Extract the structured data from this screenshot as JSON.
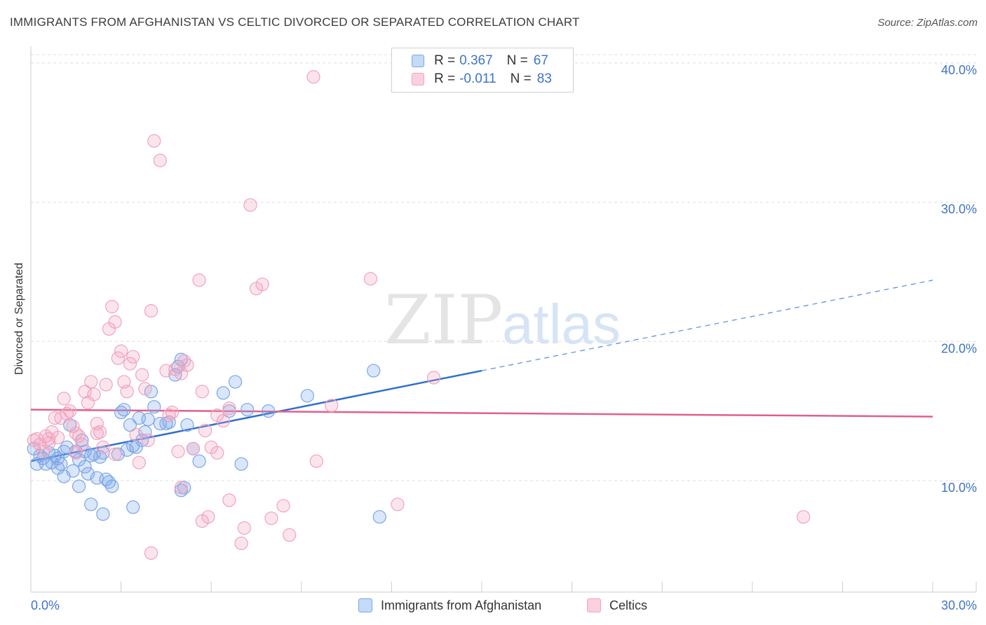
{
  "chart_data": {
    "type": "scatter",
    "title": "IMMIGRANTS FROM AFGHANISTAN VS CELTIC DIVORCED OR SEPARATED CORRELATION CHART",
    "source": "Source: ZipAtlas.com",
    "ylabel": "Divorced or Separated",
    "xlabel": "",
    "xlim": [
      0,
      30
    ],
    "ylim": [
      2,
      41
    ],
    "x_ticks": [
      "0.0%",
      "30.0%"
    ],
    "y_ticks": [
      {
        "value": 10,
        "label": "10.0%"
      },
      {
        "value": 20,
        "label": "20.0%"
      },
      {
        "value": 30,
        "label": "30.0%"
      },
      {
        "value": 40,
        "label": "40.0%"
      }
    ],
    "watermark": {
      "zip": "ZIP",
      "atlas": "atlas"
    },
    "legend": {
      "r_label": "R =",
      "n_label": "N =",
      "rows": [
        {
          "r": "0.367",
          "n": "67"
        },
        {
          "r": "-0.011",
          "n": "83"
        }
      ]
    },
    "series": [
      {
        "name": "Immigrants from Afghanistan",
        "color": "#7aa6e8",
        "line_color": "#2f6fce",
        "trend": {
          "x0": 0,
          "y0": 11.4,
          "x1": 15,
          "y1": 17.9,
          "dash_to_x": 30,
          "dash_to_y": 24.4
        },
        "points": [
          [
            0.1,
            12.3
          ],
          [
            0.2,
            11.2
          ],
          [
            0.3,
            11.8
          ],
          [
            0.4,
            11.6
          ],
          [
            0.5,
            11.2
          ],
          [
            0.6,
            12.0
          ],
          [
            0.7,
            11.3
          ],
          [
            0.8,
            11.8
          ],
          [
            0.9,
            11.6
          ],
          [
            1.0,
            11.2
          ],
          [
            1.1,
            12.1
          ],
          [
            1.2,
            12.4
          ],
          [
            1.3,
            14.0
          ],
          [
            1.4,
            10.7
          ],
          [
            1.5,
            12.1
          ],
          [
            1.6,
            11.5
          ],
          [
            1.7,
            12.9
          ],
          [
            1.8,
            11.0
          ],
          [
            1.9,
            10.5
          ],
          [
            2.0,
            11.8
          ],
          [
            2.1,
            11.9
          ],
          [
            2.2,
            10.2
          ],
          [
            2.3,
            11.7
          ],
          [
            2.4,
            12.0
          ],
          [
            2.5,
            10.1
          ],
          [
            2.6,
            9.9
          ],
          [
            2.7,
            9.6
          ],
          [
            2.0,
            8.3
          ],
          [
            2.4,
            7.6
          ],
          [
            2.9,
            11.9
          ],
          [
            3.0,
            14.9
          ],
          [
            3.1,
            15.1
          ],
          [
            3.2,
            12.2
          ],
          [
            3.3,
            14.0
          ],
          [
            3.4,
            12.5
          ],
          [
            3.5,
            12.4
          ],
          [
            3.6,
            14.5
          ],
          [
            3.7,
            12.9
          ],
          [
            3.8,
            13.5
          ],
          [
            3.9,
            14.4
          ],
          [
            4.0,
            16.4
          ],
          [
            4.1,
            15.3
          ],
          [
            3.4,
            8.1
          ],
          [
            4.3,
            14.1
          ],
          [
            4.5,
            14.1
          ],
          [
            4.6,
            14.2
          ],
          [
            4.8,
            17.6
          ],
          [
            4.9,
            18.2
          ],
          [
            5.0,
            18.7
          ],
          [
            5.2,
            14.0
          ],
          [
            5.4,
            12.3
          ],
          [
            5.6,
            11.4
          ],
          [
            5.1,
            9.5
          ],
          [
            6.4,
            16.3
          ],
          [
            6.6,
            15.0
          ],
          [
            6.8,
            17.1
          ],
          [
            5.0,
            9.3
          ],
          [
            7.0,
            11.2
          ],
          [
            7.2,
            15.1
          ],
          [
            7.9,
            15.0
          ],
          [
            9.2,
            16.1
          ],
          [
            11.4,
            17.9
          ],
          [
            11.6,
            7.4
          ],
          [
            1.6,
            9.6
          ],
          [
            1.1,
            10.3
          ],
          [
            0.9,
            10.9
          ],
          [
            1.8,
            12.1
          ]
        ]
      },
      {
        "name": "Celtics",
        "color": "#f2a2bd",
        "line_color": "#e0608a",
        "trend": {
          "x0": 0,
          "y0": 15.1,
          "x1": 30,
          "y1": 14.6
        },
        "points": [
          [
            0.1,
            12.9
          ],
          [
            0.2,
            13.0
          ],
          [
            0.3,
            12.6
          ],
          [
            0.4,
            12.1
          ],
          [
            0.5,
            13.2
          ],
          [
            0.6,
            12.7
          ],
          [
            0.7,
            13.5
          ],
          [
            0.8,
            14.5
          ],
          [
            0.9,
            13.1
          ],
          [
            1.0,
            14.5
          ],
          [
            1.1,
            15.9
          ],
          [
            1.2,
            14.8
          ],
          [
            1.3,
            15.0
          ],
          [
            1.4,
            13.9
          ],
          [
            1.5,
            13.4
          ],
          [
            1.6,
            13.2
          ],
          [
            1.7,
            12.6
          ],
          [
            1.8,
            16.4
          ],
          [
            1.9,
            15.6
          ],
          [
            2.0,
            17.1
          ],
          [
            2.1,
            16.2
          ],
          [
            2.2,
            13.4
          ],
          [
            2.3,
            13.5
          ],
          [
            2.4,
            12.4
          ],
          [
            2.5,
            16.9
          ],
          [
            2.6,
            20.9
          ],
          [
            2.7,
            22.5
          ],
          [
            2.8,
            21.4
          ],
          [
            2.9,
            18.8
          ],
          [
            3.0,
            19.3
          ],
          [
            3.1,
            17.1
          ],
          [
            3.2,
            16.4
          ],
          [
            3.3,
            18.4
          ],
          [
            3.4,
            18.9
          ],
          [
            3.5,
            13.3
          ],
          [
            3.6,
            11.3
          ],
          [
            3.7,
            17.6
          ],
          [
            3.8,
            16.6
          ],
          [
            3.9,
            12.9
          ],
          [
            4.0,
            22.2
          ],
          [
            4.1,
            34.4
          ],
          [
            4.3,
            33.0
          ],
          [
            4.5,
            17.9
          ],
          [
            4.6,
            14.7
          ],
          [
            4.7,
            14.9
          ],
          [
            4.8,
            18.0
          ],
          [
            4.9,
            12.1
          ],
          [
            5.0,
            17.7
          ],
          [
            5.1,
            18.6
          ],
          [
            5.2,
            18.3
          ],
          [
            5.4,
            12.3
          ],
          [
            5.6,
            24.4
          ],
          [
            5.7,
            16.4
          ],
          [
            5.8,
            13.6
          ],
          [
            6.0,
            12.4
          ],
          [
            6.2,
            14.7
          ],
          [
            6.4,
            14.3
          ],
          [
            6.6,
            15.2
          ],
          [
            5.0,
            9.5
          ],
          [
            5.7,
            7.1
          ],
          [
            6.2,
            12.0
          ],
          [
            6.6,
            8.6
          ],
          [
            7.0,
            5.5
          ],
          [
            7.3,
            29.8
          ],
          [
            7.5,
            23.8
          ],
          [
            7.7,
            24.1
          ],
          [
            7.1,
            6.6
          ],
          [
            8.0,
            7.3
          ],
          [
            8.4,
            8.2
          ],
          [
            8.6,
            6.1
          ],
          [
            9.4,
            39.0
          ],
          [
            9.5,
            11.4
          ],
          [
            10.0,
            15.4
          ],
          [
            11.3,
            24.5
          ],
          [
            12.2,
            8.3
          ],
          [
            13.4,
            17.4
          ],
          [
            25.7,
            7.4
          ],
          [
            2.8,
            11.9
          ],
          [
            4.0,
            4.8
          ],
          [
            5.9,
            7.4
          ],
          [
            0.6,
            13.0
          ],
          [
            1.5,
            12.0
          ],
          [
            2.2,
            14.1
          ]
        ]
      }
    ]
  }
}
